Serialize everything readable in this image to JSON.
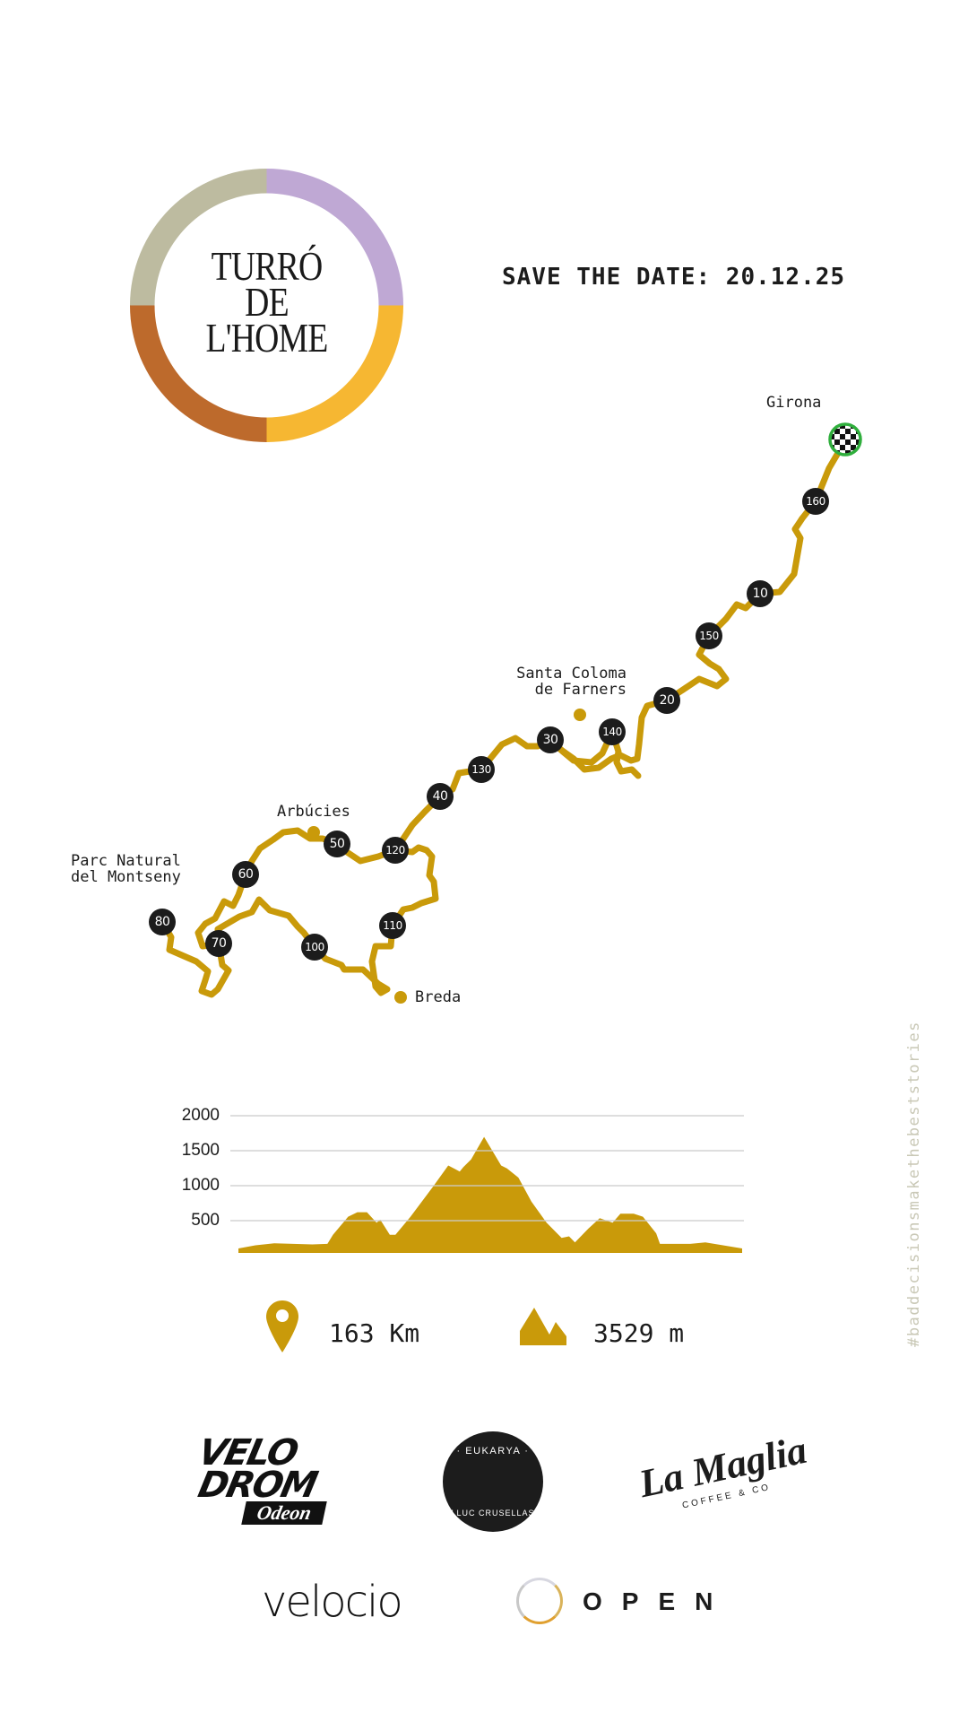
{
  "logo": {
    "lines": [
      "TURRÓ",
      "DE",
      "L'HOME"
    ],
    "ring_colors": [
      "#bdbba0",
      "#bfa8d4",
      "#f6b732",
      "#bd6a2c"
    ]
  },
  "header": {
    "save_the_date": "SAVE THE DATE: 20.12.25"
  },
  "colors": {
    "route": "#c99a0a",
    "marker": "#1c1c1c",
    "finish_ring": "#2fae3c"
  },
  "map": {
    "places": {
      "girona": "Girona",
      "santa_coloma_1": "Santa Coloma",
      "santa_coloma_2": "de Farners",
      "arbucies": "Arbúcies",
      "montseny_1": "Parc Natural",
      "montseny_2": "del Montseny",
      "breda": "Breda"
    },
    "km_markers": [
      "10",
      "20",
      "30",
      "40",
      "50",
      "60",
      "70",
      "80",
      "100",
      "110",
      "120",
      "130",
      "140",
      "150",
      "160"
    ],
    "finish_icon": "checkered-flag-icon"
  },
  "stats": {
    "distance": "163 Km",
    "distance_icon": "location-pin-icon",
    "elevation_gain": "3529 m",
    "elevation_icon": "mountain-icon"
  },
  "hashtag": "#baddecisionsmakethebeststories",
  "sponsors": {
    "velodrom": [
      "VELO",
      "DROM",
      "Odeon"
    ],
    "eukarya": [
      "· EUKARYA ·",
      "LLUC CRUSELLAS"
    ],
    "lamaglia": [
      "La Maglia",
      "COFFEE & CO"
    ],
    "velocio": "velocio",
    "open": "OPEN"
  },
  "chart_data": {
    "type": "area",
    "title": "",
    "xlabel": "",
    "ylabel": "",
    "xlim": [
      0,
      163
    ],
    "ylim": [
      0,
      2000
    ],
    "yticks": [
      500,
      1000,
      1500,
      2000
    ],
    "ytick_labels": [
      "500",
      "1000",
      "1500",
      "2000"
    ],
    "grid": true,
    "color": "#c99a0a",
    "x": [
      0,
      5.5,
      11.6,
      23.9,
      28.8,
      30.6,
      35.5,
      38.5,
      41.6,
      44.7,
      45.9,
      49,
      50.8,
      55.7,
      63,
      67.9,
      71.6,
      72.8,
      75.3,
      79.5,
      85,
      86.9,
      90.6,
      94.8,
      99.7,
      104.6,
      107,
      108.9,
      113.2,
      116.9,
      121.1,
      123.6,
      127.9,
      130.9,
      135.2,
      136.4,
      146.2,
      151.1,
      163
    ],
    "y": [
      103,
      147,
      177,
      160,
      168,
      297,
      556,
      621,
      621,
      470,
      513,
      297,
      297,
      556,
      987,
      1289,
      1203,
      1267,
      1375,
      1698,
      1289,
      1246,
      1116,
      772,
      470,
      254,
      276,
      190,
      384,
      534,
      470,
      600,
      600,
      556,
      319,
      168,
      168,
      190,
      103
    ]
  }
}
